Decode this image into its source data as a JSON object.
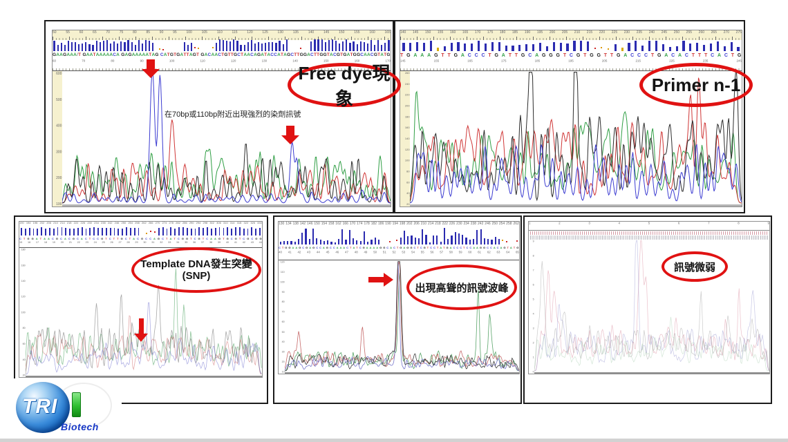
{
  "slide": {
    "background": "#ffffff",
    "footer_strip_color": "#d2d2d2"
  },
  "colors": {
    "annotation_red": "#e01212",
    "quality_bar_blue": "#2b2bb0",
    "header_cream": "#f6f1cf",
    "trace_A_green": "#2f9e44",
    "trace_C_blue": "#3b3bd1",
    "trace_G_black": "#2b2b2b",
    "trace_T_red": "#cf3535"
  },
  "annotations": {
    "top_left": {
      "ellipse_label": "Free dye現象",
      "note": "在70bp或110bp附近出現強烈的染劑訊號"
    },
    "top_right": {
      "ellipse_label": "Primer n-1"
    },
    "bottom_left": {
      "ellipse_label_line1": "Template DNA發生突變",
      "ellipse_label_line2": "(SNP)"
    },
    "bottom_middle": {
      "ellipse_label": "出現高聳的訊號波峰"
    },
    "bottom_right": {
      "ellipse_label": "訊號微弱"
    }
  },
  "logo": {
    "text": "TRI",
    "subtext": "Biotech"
  },
  "chart_data": [
    {
      "id": "top-left-free-dye",
      "type": "line",
      "title": "Free dye現象",
      "description": "Sanger chromatogram; strong free-dye blobs (blue) near 70bp and 110bp marked with red arrows",
      "sequence": "GAAGAAA/T GAATAAAAACA GAGAAAAATAG CATGTGATTAGT GACAACTGTTGCTAACAGATACCATAGCTTGGACTTGGTACGTGATGGCAACGTATG",
      "ruler": {
        "start": 50,
        "step": 5,
        "count": 24
      },
      "subruler": {
        "start": 60,
        "step": 10,
        "count": 12
      },
      "yaxis": {
        "labels": [
          "600",
          "500",
          "400",
          "300",
          "200",
          "100"
        ]
      },
      "bars": {
        "count": 96,
        "barW": 2.2,
        "hMin": 0.5,
        "hMax": 1.0,
        "seed": 3,
        "dotRanges": [
          [
            0.3,
            0.39
          ],
          [
            0.42,
            0.48
          ],
          [
            0.7,
            0.76
          ]
        ],
        "yellowAt": []
      },
      "trace": {
        "seed": 7,
        "strokeW": 1.0,
        "channels": [
          {
            "base": "A",
            "color": "#2f9e44",
            "spacing": 8.5,
            "ampMin": 0.1,
            "ampMax": 0.38,
            "sigma": 2.4
          },
          {
            "base": "T",
            "color": "#cf3535",
            "spacing": 10,
            "ampMin": 0.06,
            "ampMax": 0.3,
            "sigma": 2.6
          },
          {
            "base": "G",
            "color": "#2b2b2b",
            "spacing": 11,
            "ampMin": 0.06,
            "ampMax": 0.34,
            "sigma": 2.4
          },
          {
            "base": "C",
            "color": "#3b3bd1",
            "spacing": 12,
            "ampMin": 0.02,
            "ampMax": 0.1,
            "sigma": 2.4
          }
        ],
        "specials": [
          {
            "base": "C",
            "x": 0.275,
            "a": 0.97,
            "sigma": 3.2
          },
          {
            "base": "C",
            "x": 0.298,
            "a": 0.9,
            "sigma": 3.0
          },
          {
            "base": "T",
            "x": 0.335,
            "a": 0.55,
            "sigma": 3.6
          },
          {
            "base": "G",
            "x": 0.56,
            "a": 0.4,
            "sigma": 2.6
          },
          {
            "base": "C",
            "x": 0.7,
            "a": 0.45,
            "sigma": 2.8
          },
          {
            "base": "C",
            "x": 0.715,
            "a": 0.28,
            "sigma": 2.2
          }
        ]
      },
      "notable_peaks": [
        {
          "approx_bp": 70,
          "channel": "blue dye blob",
          "rel_height": 0.97
        },
        {
          "approx_bp": 110,
          "channel": "blue dye blob",
          "rel_height": 0.45
        }
      ]
    },
    {
      "id": "top-right-primer-n1",
      "type": "line",
      "title": "Primer n-1",
      "description": "Sanger chromatogram showing n-1 primer pattern with tall mixed peaks",
      "sequence": "TGAAAGTTGACCCTGATTGCAGGGTCGTGGTTGACCCTGACACTTTCACTG",
      "ruler": {
        "start": 140,
        "step": 5,
        "count": 28
      },
      "subruler": {
        "start": 145,
        "step": 10,
        "count": 11
      },
      "yaxis": {
        "labels": [
          "260",
          "240",
          "220",
          "200",
          "180",
          "160",
          "140",
          "120",
          "100",
          "80",
          "60",
          "40",
          "20"
        ]
      },
      "bars": {
        "count": 50,
        "barW": 3.2,
        "hMin": 0.35,
        "hMax": 1.0,
        "seed": 11,
        "dotRanges": [
          [
            0.555,
            0.615
          ]
        ],
        "yellowAt": [
          0.11,
          0.655
        ]
      },
      "trace": {
        "seed": 13,
        "strokeW": 1.0,
        "channels": [
          {
            "base": "A",
            "color": "#2f9e44",
            "spacing": 9,
            "ampMin": 0.15,
            "ampMax": 0.55,
            "sigma": 3.0
          },
          {
            "base": "T",
            "color": "#cf3535",
            "spacing": 9.5,
            "ampMin": 0.12,
            "ampMax": 0.6,
            "sigma": 3.0
          },
          {
            "base": "G",
            "color": "#2b2b2b",
            "spacing": 10,
            "ampMin": 0.15,
            "ampMax": 0.65,
            "sigma": 2.8
          },
          {
            "base": "C",
            "color": "#3b3bd1",
            "spacing": 11,
            "ampMin": 0.1,
            "ampMax": 0.45,
            "sigma": 2.8
          }
        ],
        "specials": [
          {
            "base": "G",
            "x": 0.365,
            "a": 0.93,
            "sigma": 2.6
          },
          {
            "base": "G",
            "x": 0.5,
            "a": 0.87,
            "sigma": 2.6
          },
          {
            "base": "T",
            "x": 0.845,
            "a": 0.6,
            "sigma": 2.8
          },
          {
            "base": "T",
            "x": 0.87,
            "a": 0.66,
            "sigma": 2.8
          },
          {
            "base": "G",
            "x": 0.985,
            "a": 0.62,
            "sigma": 2.6
          },
          {
            "base": "A",
            "x": 0.02,
            "a": 0.55,
            "sigma": 2.8
          }
        ]
      },
      "notable_peaks": [
        {
          "approx_bp": 190,
          "channel": "G",
          "rel_height": 0.93
        },
        {
          "approx_bp": 210,
          "channel": "G",
          "rel_height": 0.87
        }
      ]
    },
    {
      "id": "bottom-left-snp",
      "type": "line",
      "title": "Template DNA發生突變 (SNP)",
      "description": "Pale chromatogram with uniform low peaks; SNP position marked by red arrow",
      "randomSeq": {
        "n": 60,
        "seed": 99
      },
      "ruler": {
        "start": 190,
        "step": 4,
        "count": 36
      },
      "subruler": {
        "start": 15,
        "step": 1,
        "count": 30
      },
      "yaxis": {
        "labels": [
          "180",
          "160",
          "140",
          "120",
          "100",
          "80",
          "60",
          "40",
          "20"
        ]
      },
      "bars": {
        "count": 60,
        "barW": 1.8,
        "hMin": 0.75,
        "hMax": 0.95,
        "seed": 17,
        "dotRanges": [
          [
            0.5,
            0.57
          ]
        ],
        "yellowAt": []
      },
      "trace": {
        "seed": 21,
        "strokeW": 0.8,
        "channels": [
          {
            "base": "A",
            "color": "rgba(70,160,90,0.6)",
            "spacing": 5.2,
            "ampMin": 0.1,
            "ampMax": 0.35,
            "sigma": 1.9
          },
          {
            "base": "T",
            "color": "rgba(205,100,100,0.55)",
            "spacing": 5.6,
            "ampMin": 0.08,
            "ampMax": 0.3,
            "sigma": 2.0
          },
          {
            "base": "G",
            "color": "rgba(110,110,110,0.6)",
            "spacing": 5.8,
            "ampMin": 0.1,
            "ampMax": 0.38,
            "sigma": 1.9
          },
          {
            "base": "C",
            "color": "rgba(110,110,205,0.55)",
            "spacing": 6.0,
            "ampMin": 0.06,
            "ampMax": 0.25,
            "sigma": 2.0
          }
        ],
        "specials": [
          {
            "base": "G",
            "x": 0.3,
            "a": 0.45,
            "sigma": 2.0
          },
          {
            "base": "G",
            "x": 0.405,
            "a": 0.52,
            "sigma": 2.0
          },
          {
            "base": "T",
            "x": 0.44,
            "a": 0.4,
            "sigma": 2.0
          },
          {
            "base": "G",
            "x": 0.56,
            "a": 0.5,
            "sigma": 2.0
          },
          {
            "base": "A",
            "x": 0.635,
            "a": 0.52,
            "sigma": 2.0
          },
          {
            "base": "A",
            "x": 0.67,
            "a": 0.4,
            "sigma": 2.0
          },
          {
            "base": "C",
            "x": 0.52,
            "a": 0.35,
            "sigma": 2.0
          }
        ]
      },
      "notable_peaks": [
        {
          "approx_pos_frac": 0.52,
          "channel": "mixed",
          "note": "SNP position (arrow)"
        }
      ]
    },
    {
      "id": "bottom-middle-spike",
      "type": "line",
      "title": "出現高聳的訊號波峰",
      "description": "Low noisy baseline with one huge off-scale dark spike near the middle and tall green peaks at right",
      "randomSeq": {
        "n": 72,
        "seed": 55
      },
      "ruler": {
        "start": 130,
        "step": 4,
        "count": 34
      },
      "subruler": {
        "start": 40,
        "step": 1,
        "count": 26
      },
      "yaxis": {
        "labels": [
          "120",
          "110",
          "100",
          "90",
          "80",
          "70",
          "60",
          "50",
          "40",
          "30",
          "20",
          "10"
        ]
      },
      "bars": {
        "count": 66,
        "barW": 2.2,
        "hMin": 0.2,
        "hMax": 1.0,
        "seed": 29,
        "varied": true,
        "dotRanges": [
          [
            0.42,
            0.5
          ],
          [
            0.93,
            1.0
          ]
        ],
        "yellowAt": [
          0.46,
          0.95
        ]
      },
      "trace": {
        "seed": 33,
        "strokeW": 0.8,
        "channels": [
          {
            "base": "A",
            "color": "#5aa56a",
            "spacing": 5.2,
            "ampMin": 0.05,
            "ampMax": 0.18,
            "sigma": 1.8
          },
          {
            "base": "T",
            "color": "#c66a6a",
            "spacing": 4.6,
            "ampMin": 0.04,
            "ampMax": 0.16,
            "sigma": 1.8
          },
          {
            "base": "C",
            "color": "#7777cc",
            "spacing": 5.4,
            "ampMin": 0.03,
            "ampMax": 0.12,
            "sigma": 1.8
          },
          {
            "base": "G",
            "color": "#3a3a3a",
            "spacing": 5.0,
            "ampMin": 0.04,
            "ampMax": 0.14,
            "sigma": 1.8
          }
        ],
        "specials": [
          {
            "base": "C",
            "x": 0.483,
            "a": 0.85,
            "sigma": 2.0
          },
          {
            "base": "A",
            "x": 0.49,
            "a": 0.8,
            "sigma": 2.0
          },
          {
            "base": "T",
            "x": 0.487,
            "a": 0.95,
            "sigma": 2.2
          },
          {
            "base": "G",
            "x": 0.487,
            "a": 1.15,
            "sigma": 2.8
          },
          {
            "base": "A",
            "x": 0.825,
            "a": 0.6,
            "sigma": 1.8
          },
          {
            "base": "A",
            "x": 0.875,
            "a": 0.42,
            "sigma": 1.8
          },
          {
            "base": "T",
            "x": 0.06,
            "a": 0.28,
            "sigma": 1.8
          },
          {
            "base": "T",
            "x": 0.33,
            "a": 0.3,
            "sigma": 1.8
          }
        ]
      },
      "notable_peaks": [
        {
          "approx_pos_frac": 0.487,
          "channel": "all (dark)",
          "rel_height": 1.0,
          "note": "towering spike (arrow)"
        }
      ]
    },
    {
      "id": "bottom-right-weak-signal",
      "type": "line",
      "title": "訊號微弱",
      "description": "Very faint noisy multi-colour traces; weak signal overall with two slightly taller centre peaks",
      "ruler": {
        "start": 1,
        "step": 1,
        "count": 9
      },
      "yaxis": {
        "labels": [
          "9",
          "8",
          "7",
          "6",
          "5",
          "4",
          "3",
          "2",
          "1",
          "0"
        ]
      },
      "trace": {
        "seed": 61,
        "strokeW": 0.7,
        "channels": [
          {
            "base": "P",
            "color": "rgba(215,130,150,0.5)",
            "spacing": 3.6,
            "ampMin": 0.08,
            "ampMax": 0.3,
            "sigma": 1.6
          },
          {
            "base": "L",
            "color": "rgba(130,130,200,0.45)",
            "spacing": 3.8,
            "ampMin": 0.06,
            "ampMax": 0.26,
            "sigma": 1.6
          },
          {
            "base": "K",
            "color": "rgba(140,140,140,0.45)",
            "spacing": 3.5,
            "ampMin": 0.08,
            "ampMax": 0.28,
            "sigma": 1.6
          },
          {
            "base": "E",
            "color": "rgba(140,190,150,0.4)",
            "spacing": 4.0,
            "ampMin": 0.05,
            "ampMax": 0.22,
            "sigma": 1.6
          }
        ],
        "specials": [
          {
            "base": "L",
            "x": 0.435,
            "a": 0.92,
            "sigma": 2.2
          },
          {
            "base": "P",
            "x": 0.455,
            "a": 0.8,
            "sigma": 2.8
          },
          {
            "base": "P",
            "x": 0.475,
            "a": 0.5,
            "sigma": 2.0
          },
          {
            "base": "K",
            "x": 0.035,
            "a": 0.5,
            "sigma": 2.4
          },
          {
            "base": "P",
            "x": 0.06,
            "a": 0.55,
            "sigma": 2.6
          },
          {
            "base": "P",
            "x": 0.085,
            "a": 0.42,
            "sigma": 2.2
          },
          {
            "base": "L",
            "x": 0.105,
            "a": 0.36,
            "sigma": 2.0
          },
          {
            "base": "K",
            "x": 0.13,
            "a": 0.3,
            "sigma": 2.0
          },
          {
            "base": "K",
            "x": 0.71,
            "a": 0.33,
            "sigma": 2.0
          },
          {
            "base": "P",
            "x": 0.87,
            "a": 0.38,
            "sigma": 2.0
          },
          {
            "base": "L",
            "x": 0.93,
            "a": 0.33,
            "sigma": 2.0
          },
          {
            "base": "E",
            "x": 0.58,
            "a": 0.28,
            "sigma": 1.8
          }
        ]
      },
      "notable_peaks": [
        {
          "approx_pos_frac": 0.44,
          "channel": "blue/pink",
          "rel_height": 0.9,
          "note": "only clear peaks in weak trace"
        }
      ]
    }
  ]
}
